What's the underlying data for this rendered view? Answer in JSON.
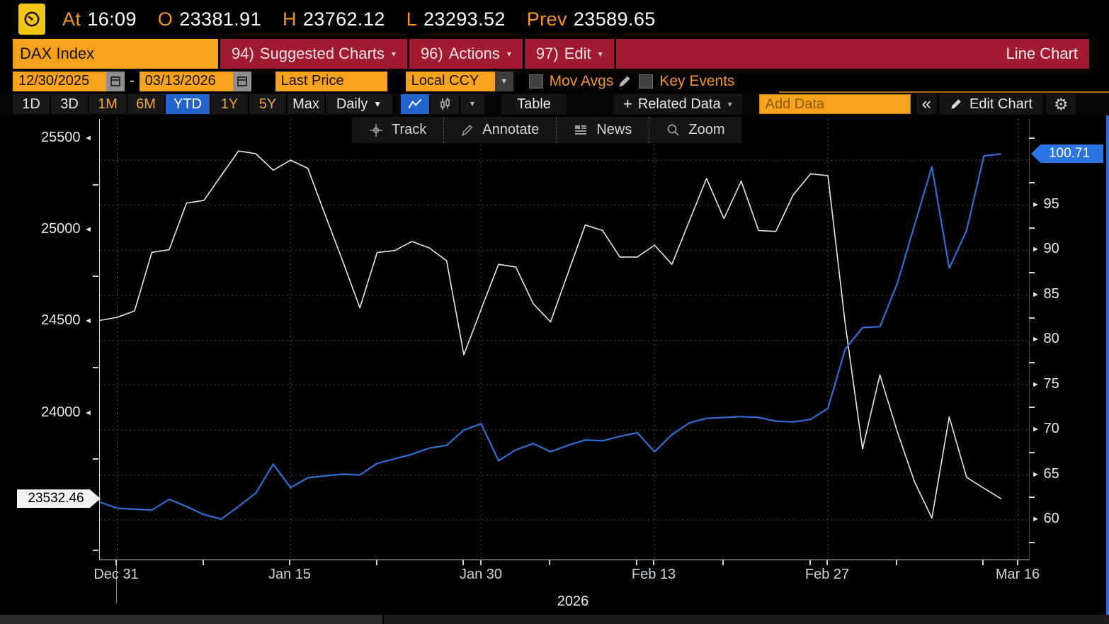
{
  "titlebar": {
    "at_label": "At",
    "time": "16:09",
    "open_label": "O",
    "open": "23381.91",
    "high_label": "H",
    "high": "23762.12",
    "low_label": "L",
    "low": "23293.52",
    "prev_label": "Prev",
    "prev": "23589.65"
  },
  "menubar": {
    "security": "DAX Index",
    "items": [
      {
        "num": "94)",
        "label": "Suggested Charts"
      },
      {
        "num": "96)",
        "label": "Actions"
      },
      {
        "num": "97)",
        "label": "Edit"
      }
    ],
    "chart_type_label": "Line Chart"
  },
  "settings": {
    "date_from": "12/30/2025",
    "date_sep": "-",
    "date_to": "03/13/2026",
    "price_field": "Last Price",
    "currency": "Local CCY",
    "mov_avgs_label": "Mov Avgs",
    "key_events_label": "Key Events"
  },
  "toolbar": {
    "periods": [
      "1D",
      "3D",
      "1M",
      "6M",
      "YTD",
      "1Y",
      "5Y",
      "Max"
    ],
    "active_period": "YTD",
    "frequency_label": "Daily",
    "table_label": "Table",
    "related_data_label": "Related Data",
    "add_data_placeholder": "Add Data",
    "collapse_label": "«",
    "edit_chart_label": "Edit Chart"
  },
  "chart_toolbar": {
    "items": [
      "Track",
      "Annotate",
      "News",
      "Zoom"
    ]
  },
  "chart_data": {
    "type": "line",
    "year_label": "2026",
    "slots_total": 53.6,
    "x_dates": [
      "12/30",
      "12/31",
      "01/02",
      "01/05",
      "01/06",
      "01/07",
      "01/08",
      "01/09",
      "01/12",
      "01/13",
      "01/14",
      "01/15",
      "01/16",
      "01/19",
      "01/20",
      "01/21",
      "01/22",
      "01/23",
      "01/26",
      "01/27",
      "01/28",
      "01/29",
      "01/30",
      "02/02",
      "02/03",
      "02/04",
      "02/05",
      "02/06",
      "02/09",
      "02/10",
      "02/11",
      "02/12",
      "02/13",
      "02/16",
      "02/17",
      "02/18",
      "02/19",
      "02/20",
      "02/23",
      "02/24",
      "02/25",
      "02/26",
      "02/27",
      "03/02",
      "03/03",
      "03/04",
      "03/05",
      "03/06",
      "03/09",
      "03/10",
      "03/11",
      "03/12",
      "03/13"
    ],
    "x_major_ticks": [
      {
        "label": "Dec 31",
        "slot": 1
      },
      {
        "label": "Jan 15",
        "slot": 11
      },
      {
        "label": "Jan 30",
        "slot": 22
      },
      {
        "label": "Feb 13",
        "slot": 32
      },
      {
        "label": "Feb 27",
        "slot": 42
      },
      {
        "label": "Mar 16",
        "slot": 53
      }
    ],
    "x_minor_tick_slots": [
      1,
      6,
      11,
      16,
      21,
      22,
      26,
      31,
      32,
      36,
      41,
      42,
      46,
      51,
      53
    ],
    "series": [
      {
        "name": "dax-index-last-price",
        "axis": "left",
        "color": "#e8e8e8",
        "last_label": "23532.46",
        "values": [
          24508,
          24525,
          24560,
          24880,
          24895,
          25150,
          25165,
          25300,
          25435,
          25420,
          25330,
          25385,
          25340,
          25085,
          24835,
          24577,
          24880,
          24890,
          24940,
          24905,
          24835,
          24320,
          24570,
          24815,
          24800,
          24600,
          24500,
          24765,
          25030,
          25000,
          24855,
          24855,
          24920,
          24815,
          25050,
          25285,
          25065,
          25270,
          25000,
          24995,
          25195,
          25310,
          25300,
          24490,
          23805,
          24210,
          23900,
          23625,
          23427,
          23980,
          23650,
          23589.65,
          23532.46
        ]
      },
      {
        "name": "comparison-normalized",
        "axis": "right",
        "color": "#2f6fd4",
        "last_label": "100.71",
        "values": [
          62.0,
          61.3,
          61.2,
          61.1,
          62.3,
          61.5,
          60.6,
          60.1,
          61.5,
          63.0,
          66.2,
          63.6,
          64.7,
          64.9,
          65.1,
          65.0,
          66.3,
          66.8,
          67.3,
          68.0,
          68.3,
          70.0,
          70.7,
          66.6,
          67.8,
          68.5,
          67.6,
          68.3,
          68.9,
          68.8,
          69.3,
          69.7,
          67.6,
          69.5,
          70.8,
          71.3,
          71.4,
          71.5,
          71.4,
          71.0,
          70.9,
          71.2,
          72.4,
          79.0,
          81.4,
          81.5,
          86.3,
          92.8,
          99.3,
          88.0,
          92.2,
          100.5,
          100.71
        ]
      }
    ],
    "left_axis": {
      "min": 23200,
      "max": 25610,
      "ticks": [
        25500,
        25000,
        24500,
        24000
      ],
      "minor_ticks": [
        25250,
        24750,
        24250,
        23750,
        23250
      ],
      "last_value": 23532.46,
      "last_label": "23532.46"
    },
    "right_axis": {
      "min": 55.6,
      "max": 104.6,
      "ticks": [
        95,
        90,
        85,
        80,
        75,
        70,
        65,
        60
      ],
      "minor_ticks": [
        102.5,
        97.5,
        92.5,
        87.5,
        82.5,
        77.5,
        72.5,
        67.5,
        62.5,
        57.5
      ],
      "gridlines": [
        100,
        95,
        90,
        85,
        80,
        75,
        70,
        65,
        60
      ],
      "last_value": 100.71,
      "last_label": "100.71"
    }
  },
  "colors": {
    "amber": "#f6a21d",
    "menu_red": "#a01a31",
    "accent_blue": "#2264cc",
    "line_blue": "#2f6fd4",
    "line_white": "#e8e8e8",
    "badge_blue": "#2b74e4"
  }
}
